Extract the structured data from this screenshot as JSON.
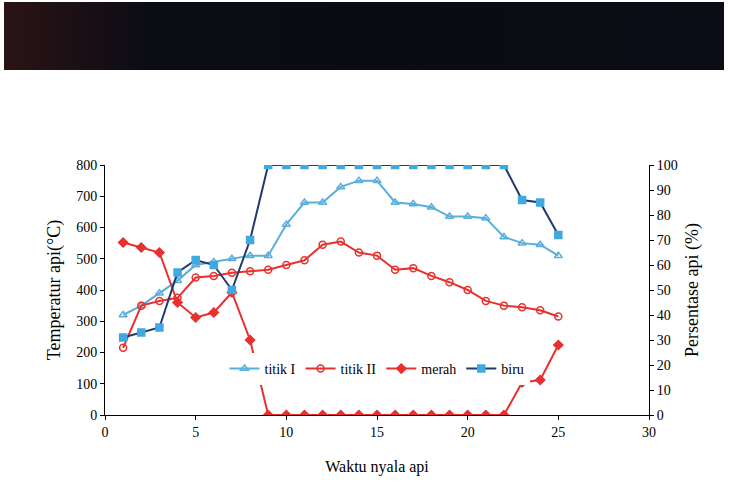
{
  "chart_data": {
    "type": "line",
    "x_label": "Waktu nyala api",
    "y_label": "Temperatur api(°C)",
    "y2_label": "Persentase api (%)",
    "x": [
      1,
      2,
      3,
      4,
      5,
      6,
      7,
      8,
      9,
      10,
      11,
      12,
      13,
      14,
      15,
      16,
      17,
      18,
      19,
      20,
      21,
      22,
      23,
      24,
      25
    ],
    "xlim": [
      0,
      30
    ],
    "xticks": [
      0,
      5,
      10,
      15,
      20,
      25,
      30
    ],
    "ylim": [
      0,
      800
    ],
    "yticks": [
      0,
      100,
      200,
      300,
      400,
      500,
      600,
      700,
      800
    ],
    "y2lim": [
      0,
      100
    ],
    "y2ticks": [
      0,
      10,
      20,
      30,
      40,
      50,
      60,
      70,
      80,
      90,
      100
    ],
    "grid": false,
    "legend": "bottom",
    "series": [
      {
        "name": "titik I",
        "color": "#5aaedc",
        "marker": "triangle-open",
        "values": [
          320,
          350,
          390,
          430,
          480,
          490,
          500,
          510,
          510,
          610,
          680,
          680,
          730,
          750,
          750,
          680,
          675,
          665,
          635,
          635,
          630,
          570,
          550,
          545,
          510
        ]
      },
      {
        "name": "titik II",
        "color": "#e8312f",
        "marker": "circle-open",
        "values": [
          215,
          350,
          365,
          375,
          440,
          445,
          455,
          460,
          465,
          480,
          495,
          545,
          555,
          520,
          510,
          465,
          470,
          445,
          425,
          400,
          365,
          350,
          345,
          335,
          315
        ]
      },
      {
        "name": "merah",
        "color": "#e8312f",
        "marker": "diamond",
        "axis": "y2",
        "values": [
          69,
          67,
          65,
          45,
          39,
          41,
          49,
          30,
          0,
          0,
          0,
          0,
          0,
          0,
          0,
          0,
          0,
          0,
          0,
          0,
          0,
          0,
          13,
          14,
          28
        ]
      },
      {
        "name": "biru",
        "color": "#1f3a6e",
        "marker": "square",
        "axis": "y2",
        "values": [
          31,
          33,
          35,
          57,
          62,
          60,
          50,
          70,
          100,
          100,
          100,
          100,
          100,
          100,
          100,
          100,
          100,
          100,
          100,
          100,
          100,
          100,
          86,
          85,
          72
        ]
      }
    ]
  }
}
